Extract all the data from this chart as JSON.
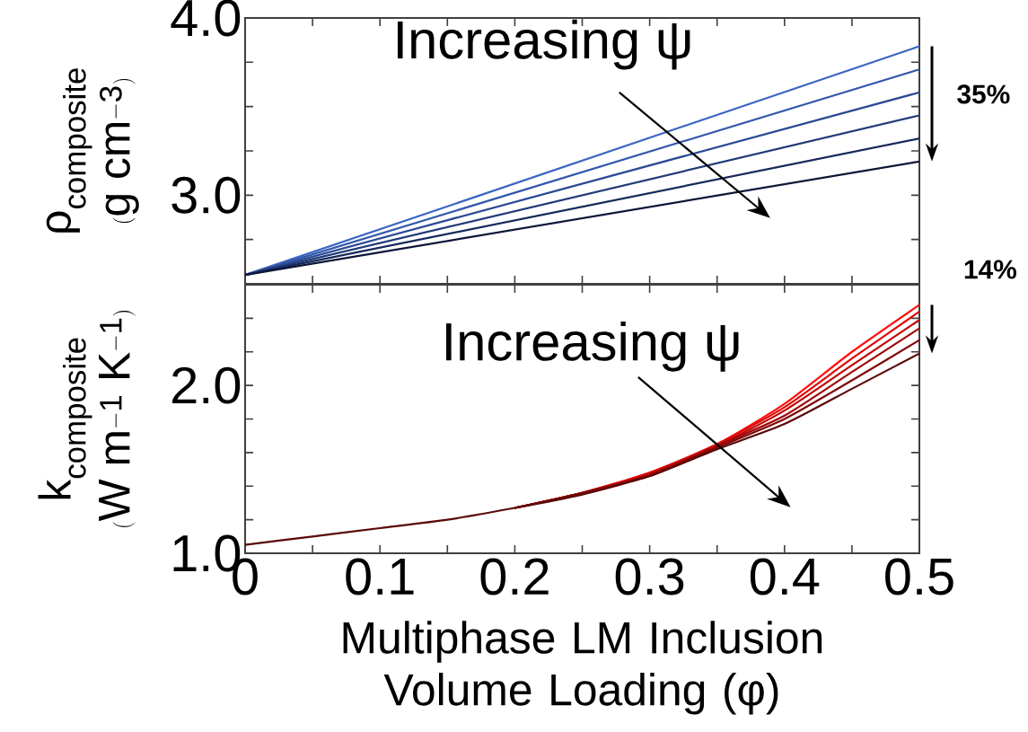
{
  "chart_data": [
    {
      "type": "line",
      "ylabel": "\\begin{array}{c}\\mathrm{ρ_{composite}}\\\\ \\mathrm{(g\\ cm^{-3})}\\end{array}",
      "annotations": [
        "Increasing ψ",
        "35%"
      ],
      "tick_labels": "y",
      "x": [
        0,
        0.5
      ],
      "series": [
        {
          "color": "#3b66c4",
          "values": [
            2.55,
            3.84
          ]
        },
        {
          "color": "#3358ac",
          "values": [
            2.55,
            3.71
          ]
        },
        {
          "color": "#2a4a94",
          "values": [
            2.55,
            3.58
          ]
        },
        {
          "color": "#203a78",
          "values": [
            2.55,
            3.45
          ]
        },
        {
          "color": "#16285a",
          "values": [
            2.55,
            3.32
          ]
        },
        {
          "color": "#0c1638",
          "values": [
            2.55,
            3.19
          ]
        }
      ],
      "xlim": [
        0,
        0.5
      ],
      "ylim": [
        2.5,
        4.0
      ],
      "xticks": [
        0,
        0.05,
        0.1,
        0.15,
        0.2,
        0.25,
        0.3,
        0.35,
        0.4,
        0.45,
        0.5
      ],
      "yticks": [
        {
          "value": 2.75,
          "label": null
        },
        {
          "value": 3.0,
          "label": "3.0"
        },
        {
          "value": 3.25,
          "label": null
        },
        {
          "value": 3.5,
          "label": null
        },
        {
          "value": 3.75,
          "label": null
        },
        {
          "value": 4.0,
          "label": "4.0"
        }
      ]
    },
    {
      "type": "line",
      "xlabel": "Multiphase LM Inclusion Volume Loading (φ)",
      "ylabel": "\\begin{array}{c}\\mathrm{k_{composite}}\\\\ \\mathrm{(W\\ m^{-1}\\ K^{-1})}\\end{array}",
      "annotations": [
        "Increasing ψ",
        "14%"
      ],
      "x": [
        0,
        0.05,
        0.1,
        0.15,
        0.2,
        0.25,
        0.3,
        0.35,
        0.4,
        0.45,
        0.5
      ],
      "series": [
        {
          "color": "#ff1010",
          "values": [
            null,
            null,
            null,
            null,
            1.27,
            1.36,
            1.48,
            1.65,
            1.89,
            2.2,
            2.48
          ]
        },
        {
          "color": "#e00808",
          "values": [
            null,
            null,
            null,
            null,
            1.27,
            1.36,
            1.48,
            1.65,
            1.87,
            2.16,
            2.44
          ]
        },
        {
          "color": "#c00404",
          "values": [
            null,
            null,
            null,
            null,
            1.27,
            1.36,
            1.47,
            1.64,
            1.85,
            2.12,
            2.39
          ]
        },
        {
          "color": "#a00606",
          "values": [
            null,
            null,
            null,
            null,
            1.27,
            1.36,
            1.47,
            1.64,
            1.82,
            2.08,
            2.34
          ]
        },
        {
          "color": "#800808",
          "values": [
            null,
            null,
            null,
            null,
            1.27,
            1.36,
            1.46,
            1.63,
            1.8,
            2.03,
            2.27
          ]
        },
        {
          "color": "#5a0808",
          "values": [
            1.05,
            1.1,
            1.15,
            1.2,
            1.27,
            1.35,
            1.46,
            1.62,
            1.77,
            1.98,
            2.19
          ]
        }
      ],
      "xlim": [
        0,
        0.5
      ],
      "ylim": [
        1.0,
        2.6
      ],
      "xticks": [
        0,
        {
          "value": 0.05,
          "label": null
        },
        0.1,
        {
          "value": 0.15,
          "label": null
        },
        0.2,
        {
          "value": 0.25,
          "label": null
        },
        0.3,
        {
          "value": 0.35,
          "label": null
        },
        0.4,
        {
          "value": 0.45,
          "label": null
        },
        0.5
      ],
      "yticks": [
        {
          "value": 1.0,
          "label": "1.0"
        },
        {
          "value": 1.2,
          "label": null
        },
        {
          "value": 1.4,
          "label": null
        },
        {
          "value": 1.6,
          "label": null
        },
        {
          "value": 1.8,
          "label": null
        },
        {
          "value": 2.0,
          "label": "2.0"
        },
        {
          "value": 2.2,
          "label": null
        },
        {
          "value": 2.4,
          "label": null
        }
      ]
    }
  ]
}
